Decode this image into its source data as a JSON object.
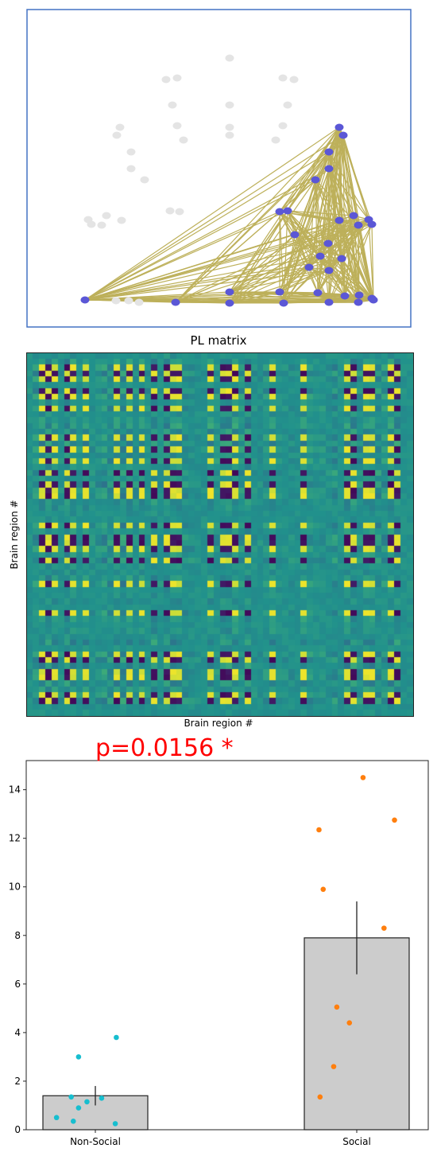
{
  "network_plot": {
    "edge_color": "#bdb05a",
    "node_active_color": "#5b57d6",
    "node_inactive_color": "#e4e4e4",
    "frame_color": "#4472c4"
  },
  "matrix_plot": {
    "title": "PL matrix",
    "xlabel": "Brain region #",
    "ylabel": "Brain region #",
    "colormap": "viridis",
    "grid": "none"
  },
  "annotation": {
    "p_value_text": "p=0.0156 *",
    "color": "#ff0000"
  },
  "chart_data": {
    "type": "bar",
    "categories": [
      "Non-Social",
      "Social"
    ],
    "values": [
      1.4,
      7.9
    ],
    "errors": [
      0.4,
      1.5
    ],
    "ylim": [
      0,
      15.2
    ],
    "yticks": [
      0,
      2,
      4,
      6,
      8,
      10,
      12,
      14
    ],
    "xlabel": "",
    "ylabel": "",
    "grid": false,
    "bar_color": "#cccccc",
    "points": [
      {
        "category": "Non-Social",
        "color": "#17becf",
        "values": [
          3.8,
          3.0,
          1.35,
          1.3,
          1.15,
          0.9,
          0.5,
          0.35,
          0.25
        ],
        "offsets": [
          0.2,
          -0.16,
          -0.23,
          0.06,
          -0.08,
          -0.16,
          -0.37,
          -0.21,
          0.19
        ]
      },
      {
        "category": "Social",
        "color": "#ff7f0e",
        "values": [
          14.5,
          12.75,
          12.35,
          9.9,
          8.3,
          5.05,
          4.4,
          2.6,
          1.35
        ],
        "offsets": [
          0.06,
          0.36,
          -0.36,
          -0.32,
          0.26,
          -0.19,
          -0.07,
          -0.22,
          -0.35
        ]
      }
    ]
  }
}
